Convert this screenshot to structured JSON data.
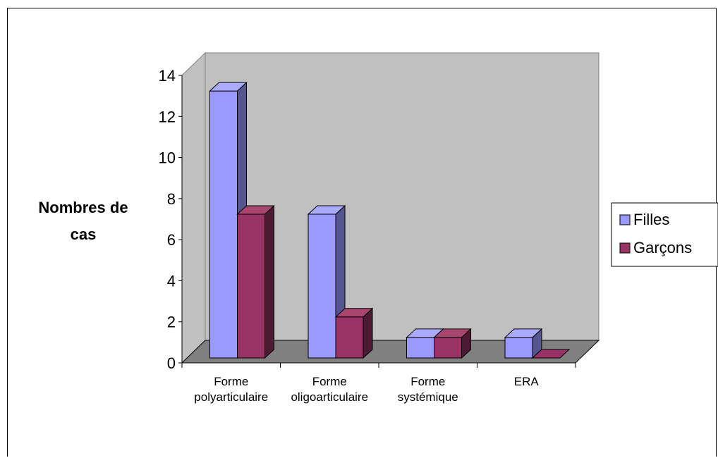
{
  "chart_data": {
    "type": "bar",
    "title": "",
    "xlabel": "",
    "ylabel": [
      "Nombres de",
      "cas"
    ],
    "ylim": [
      0,
      14
    ],
    "yticks": [
      0,
      2,
      4,
      6,
      8,
      10,
      12,
      14
    ],
    "categories": [
      [
        "Forme",
        "polyarticulaire"
      ],
      [
        "Forme",
        "oligoarticulaire"
      ],
      [
        "Forme",
        "systémique"
      ],
      [
        "ERA"
      ]
    ],
    "series": [
      {
        "name": "Filles",
        "values": [
          13,
          7,
          1,
          1
        ],
        "color": "#9999ff",
        "side": "#55558f",
        "top": "#aaaaff"
      },
      {
        "name": "Garçons",
        "values": [
          7,
          2,
          1,
          0
        ],
        "color": "#993366",
        "side": "#4d1a33",
        "top": "#a8466f"
      }
    ],
    "wall_color": "#c0c0c0",
    "floor_color": "#808080",
    "legend": "right",
    "style": "3d-clustered"
  }
}
